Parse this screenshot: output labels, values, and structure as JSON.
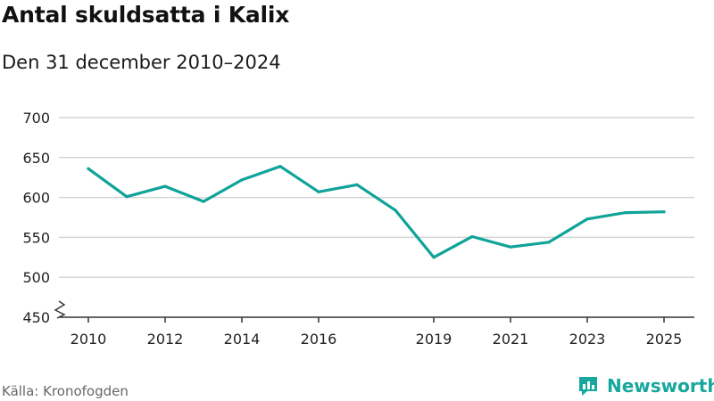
{
  "header": {
    "title": "Antal skuldsatta i Kalix",
    "subtitle": "Den 31 december 2010–2024"
  },
  "footer": {
    "source": "Källa: Kronofogden",
    "brand": "Newsworthy"
  },
  "colors": {
    "line": "#0fa399",
    "grid": "#d4d4d4",
    "axis": "#333333",
    "brand": "#16a79d"
  },
  "chart_data": {
    "type": "line",
    "title": "Antal skuldsatta i Kalix",
    "subtitle": "Den 31 december 2010–2024",
    "xlabel": "",
    "ylabel": "",
    "x": [
      2010,
      2011,
      2012,
      2013,
      2014,
      2015,
      2016,
      2017,
      2018,
      2019,
      2020,
      2021,
      2022,
      2023,
      2024,
      2025
    ],
    "series": [
      {
        "name": "Antal skuldsatta",
        "values": [
          636,
          601,
          614,
          595,
          622,
          639,
          607,
          616,
          584,
          525,
          551,
          538,
          544,
          573,
          581,
          582
        ]
      }
    ],
    "xlim": [
      2009.6,
      2025.8
    ],
    "ylim": [
      450,
      700
    ],
    "yticks": [
      450,
      500,
      550,
      600,
      650,
      700
    ],
    "xticks": [
      2010,
      2012,
      2014,
      2016,
      2019,
      2021,
      2023,
      2025
    ],
    "grid": true,
    "axis_break": true,
    "legend": "none"
  }
}
